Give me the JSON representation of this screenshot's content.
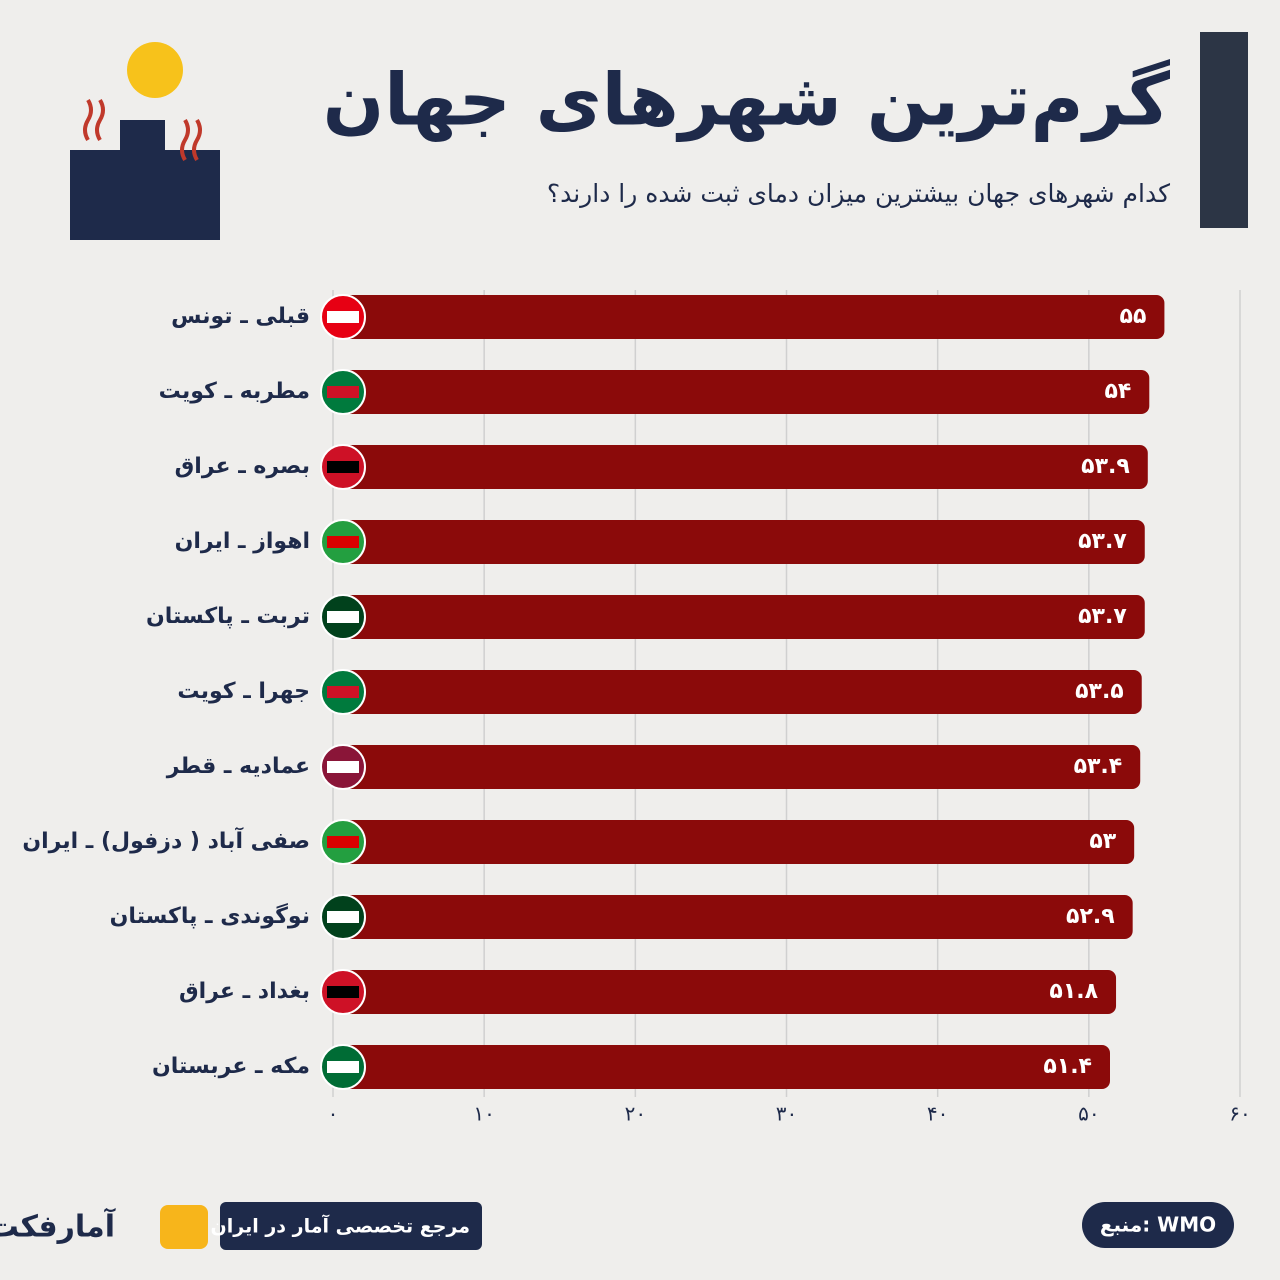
{
  "chart_data": {
    "type": "bar",
    "orientation": "horizontal",
    "title": "گرم‌ترین شهرهای جهان",
    "subtitle": "کدام شهرهای جهان بیشترین میزان دمای ثبت شده را دارند؟",
    "categories": [
      "قبلی ـ تونس",
      "مطربه ـ کویت",
      "بصره ـ عراق",
      "اهواز ـ ایران",
      "تربت ـ پاکستان",
      "جهرا ـ کویت",
      "عمادیه ـ قطر",
      "صفی آباد ( دزفول) ـ ایران",
      "نوگوندی ـ پاکستان",
      "بغداد ـ عراق",
      "مکه ـ عربستان"
    ],
    "values": [
      55,
      54,
      53.9,
      53.7,
      53.7,
      53.5,
      53.4,
      53,
      52.9,
      51.8,
      51.4
    ],
    "value_labels": [
      "۵۵",
      "۵۴",
      "۵۳.۹",
      "۵۳.۷",
      "۵۳.۷",
      "۵۳.۵",
      "۵۳.۴",
      "۵۳",
      "۵۲.۹",
      "۵۱.۸",
      "۵۱.۴"
    ],
    "color": "#8b0a0a",
    "xlim": [
      0,
      60
    ],
    "xticks": [
      {
        "value": 0,
        "label": "۰"
      },
      {
        "value": 10,
        "label": "۱۰"
      },
      {
        "value": 20,
        "label": "۲۰"
      },
      {
        "value": 30,
        "label": "۳۰"
      },
      {
        "value": 40,
        "label": "۴۰"
      },
      {
        "value": 50,
        "label": "۵۰"
      },
      {
        "value": 60,
        "label": "۶۰"
      }
    ],
    "grid": true
  },
  "footer": {
    "brand": "آمارفکت",
    "tagline": "مرجع تخصصی آمار در ایران",
    "source": "منبع: WMO"
  }
}
